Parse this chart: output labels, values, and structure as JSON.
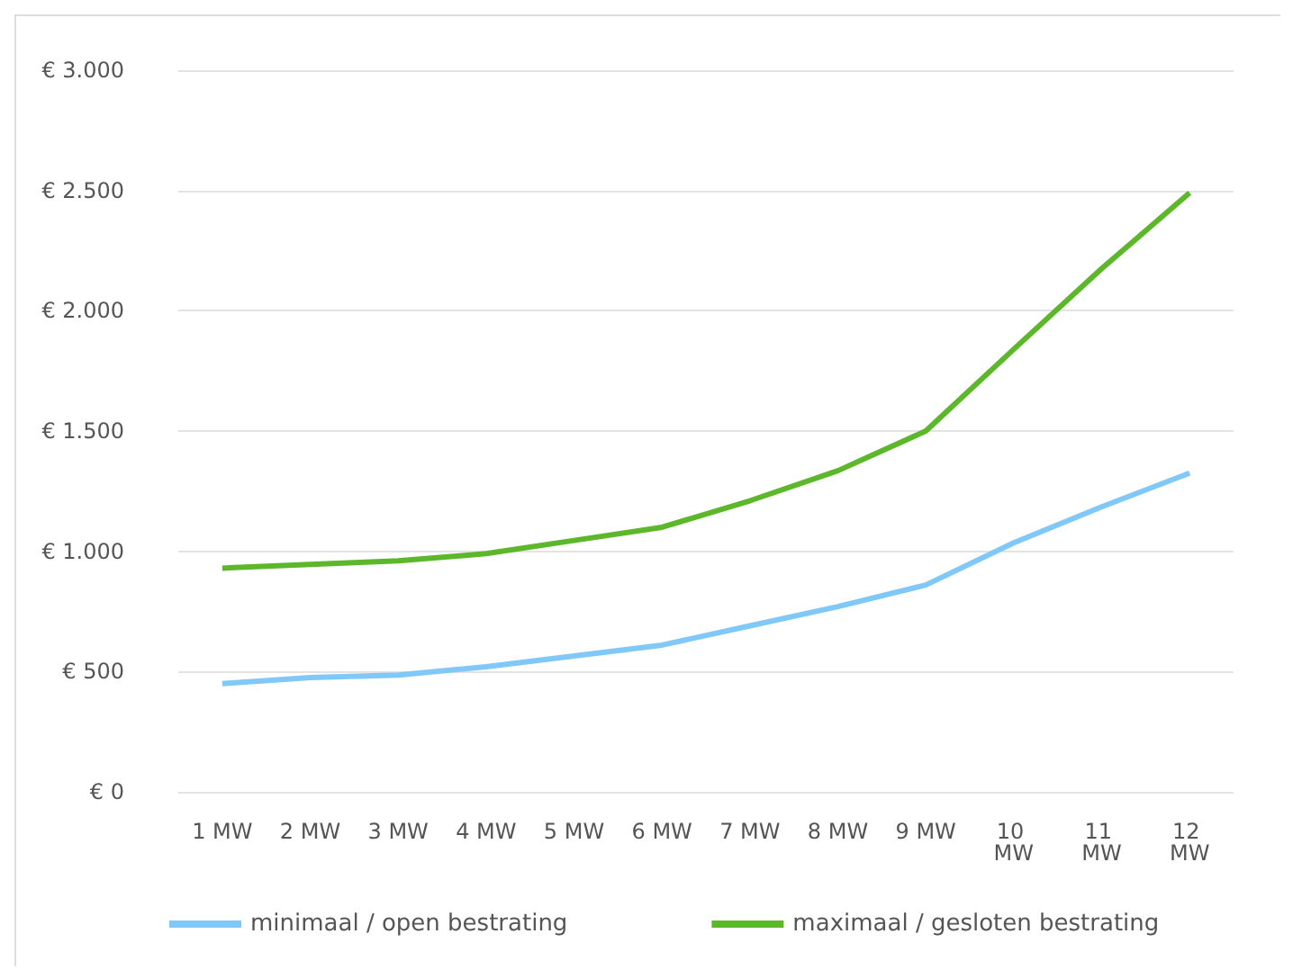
{
  "chart_data": {
    "type": "line",
    "categories": [
      "1 MW",
      "2 MW",
      "3 MW",
      "4 MW",
      "5 MW",
      "6 MW",
      "7 MW",
      "8 MW",
      "9 MW",
      "10 MW",
      "11 MW",
      "12 MW"
    ],
    "series": [
      {
        "name": "minimaal / open bestrating",
        "color": "#7fc8f8",
        "values": [
          450,
          475,
          485,
          520,
          565,
          610,
          690,
          770,
          860,
          1035,
          1185,
          1325
        ]
      },
      {
        "name": "maximaal / gesloten bestrating",
        "color": "#5cb82a",
        "values": [
          930,
          945,
          960,
          990,
          1045,
          1100,
          1210,
          1335,
          1500,
          1840,
          2175,
          2490
        ]
      }
    ],
    "ylim": [
      0,
      3000
    ],
    "yticks": [
      {
        "value": 0,
        "label": "€ 0"
      },
      {
        "value": 500,
        "label": "€ 500"
      },
      {
        "value": 1000,
        "label": "€ 1.000"
      },
      {
        "value": 1500,
        "label": "€ 1.500"
      },
      {
        "value": 2000,
        "label": "€ 2.000"
      },
      {
        "value": 2500,
        "label": "€ 2.500"
      },
      {
        "value": 3000,
        "label": "€ 3.000"
      }
    ],
    "grid": "y",
    "legend": "bottom",
    "marker": "none",
    "line_style": "solid"
  }
}
